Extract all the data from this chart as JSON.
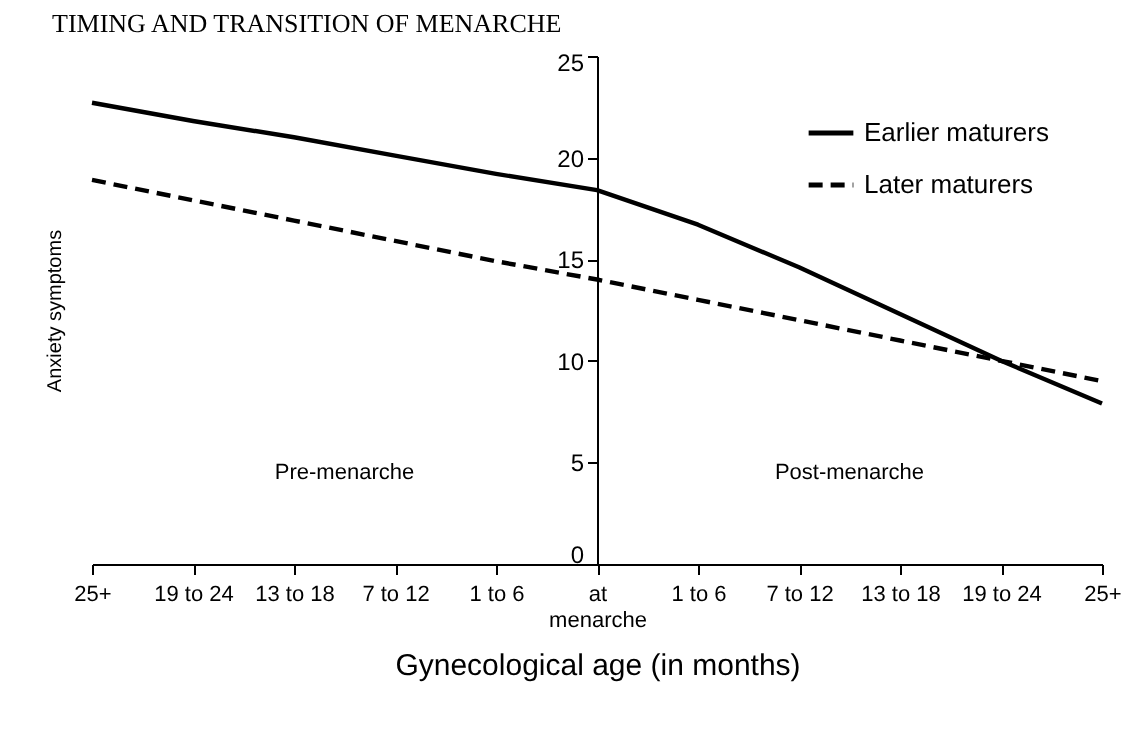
{
  "chart_data": {
    "type": "line",
    "title": "TIMING AND TRANSITION OF MENARCHE",
    "xlabel": "Gynecological age (in months)",
    "ylabel": "Anxiety symptoms",
    "categories": [
      "25+",
      "19 to 24",
      "13 to 18",
      "7  to 12",
      "1 to 6",
      "at menarche",
      "1 to 6",
      "7 to 12",
      "13 to 18",
      "19 to 24",
      "25+"
    ],
    "series": [
      {
        "name": "Earlier maturers",
        "color": "#000000",
        "line_style": "solid",
        "values": [
          22.7,
          21.8,
          21.0,
          20.1,
          19.2,
          18.4,
          16.7,
          14.6,
          12.3,
          10.0,
          7.9
        ]
      },
      {
        "name": "Later maturers",
        "color": "#000000",
        "line_style": "dashed",
        "values": [
          18.9,
          17.9,
          16.9,
          15.9,
          14.9,
          14.0,
          13.0,
          12.0,
          11.0,
          10.0,
          9.0
        ]
      }
    ],
    "ylim": [
      0,
      25
    ],
    "yticks": [
      0,
      5,
      10,
      15,
      20,
      25
    ],
    "grid": false,
    "legend": "top right",
    "marker": "none",
    "annotations": [
      "Pre-menarche",
      "Post-menarche"
    ]
  }
}
